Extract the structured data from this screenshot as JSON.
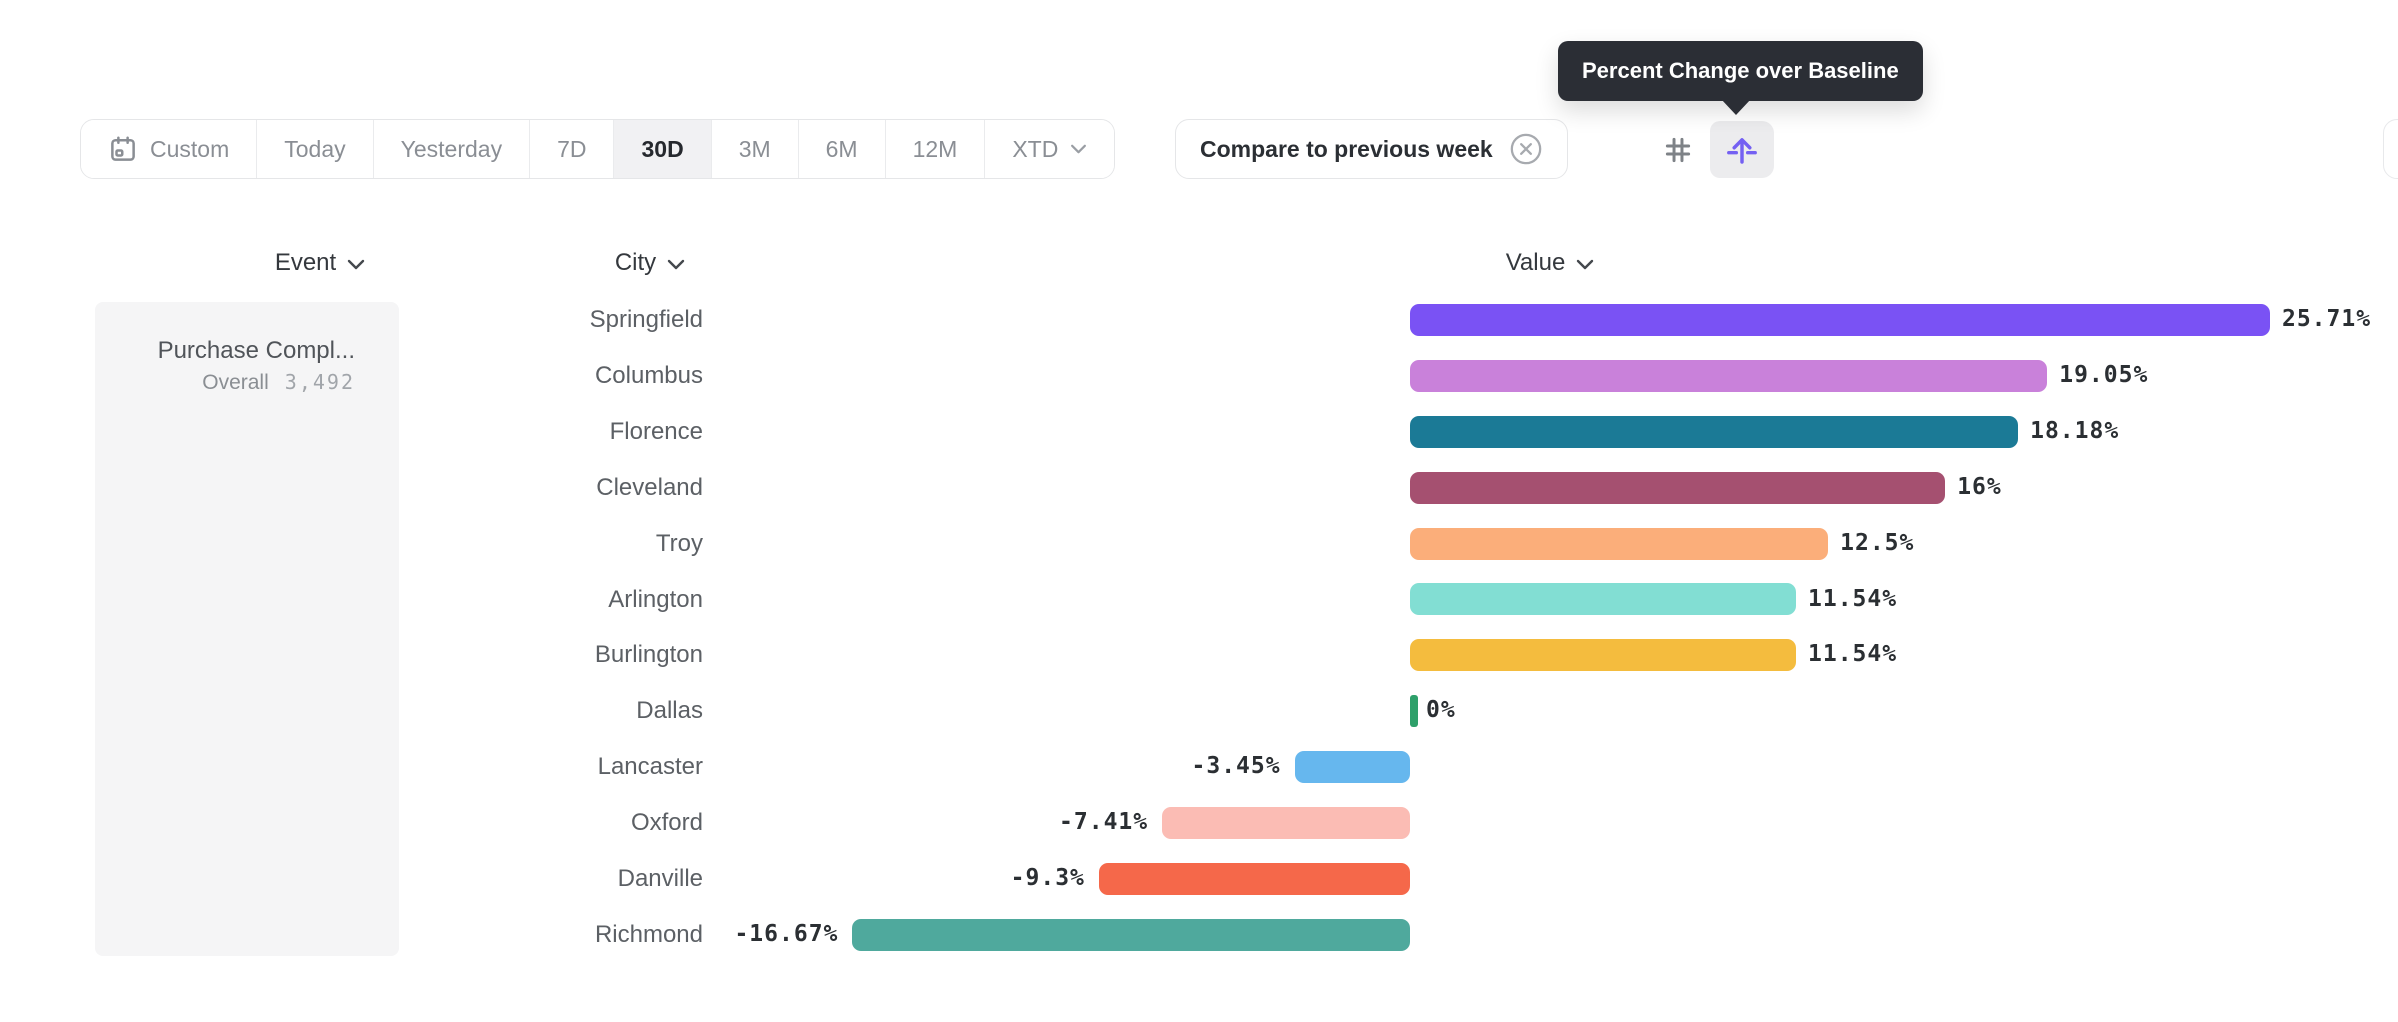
{
  "tooltip": {
    "text": "Percent Change over Baseline"
  },
  "toolbar": {
    "date_ranges": [
      {
        "label": "Custom",
        "icon": "calendar-icon",
        "selected": false
      },
      {
        "label": "Today",
        "selected": false
      },
      {
        "label": "Yesterday",
        "selected": false
      },
      {
        "label": "7D",
        "selected": false
      },
      {
        "label": "30D",
        "selected": true
      },
      {
        "label": "3M",
        "selected": false
      },
      {
        "label": "6M",
        "selected": false
      },
      {
        "label": "12M",
        "selected": false
      },
      {
        "label": "XTD",
        "has_chevron": true,
        "selected": false
      }
    ],
    "compare_chip": {
      "label": "Compare to previous week",
      "close_icon": "circle-x-icon"
    },
    "view_toggles": [
      {
        "icon": "hash-icon",
        "active": false
      },
      {
        "icon": "baseline-arrow-icon",
        "active": true
      }
    ],
    "accent_color": "#7460f2",
    "icon_gray": "#7e8287"
  },
  "event_panel": {
    "title": "Purchase Compl...",
    "metric_label": "Overall",
    "metric_value": "3,492"
  },
  "chart_data": {
    "type": "bar",
    "orientation": "horizontal",
    "title": "Percent Change over Baseline",
    "column_headers": {
      "event": "Event",
      "city": "City",
      "value": "Value"
    },
    "categories": [
      "Springfield",
      "Columbus",
      "Florence",
      "Cleveland",
      "Troy",
      "Arlington",
      "Burlington",
      "Dallas",
      "Lancaster",
      "Oxford",
      "Danville",
      "Richmond"
    ],
    "values": [
      25.71,
      19.05,
      18.18,
      16,
      12.5,
      11.54,
      11.54,
      0,
      -3.45,
      -7.41,
      -9.3,
      -16.67
    ],
    "value_labels": [
      "25.71%",
      "19.05%",
      "18.18%",
      "16%",
      "12.5%",
      "11.54%",
      "11.54%",
      "0%",
      "-3.45%",
      "-7.41%",
      "-9.3%",
      "-16.67%"
    ],
    "colors": [
      "#7a52f4",
      "#c981da",
      "#1b7a96",
      "#a55070",
      "#fbae7a",
      "#82ded3",
      "#f4bc3e",
      "#2ea06a",
      "#66b7ee",
      "#fbbcb4",
      "#f5684a",
      "#4fa99d"
    ],
    "baseline": 0,
    "unit": "%",
    "grid": false,
    "legend": "none"
  }
}
